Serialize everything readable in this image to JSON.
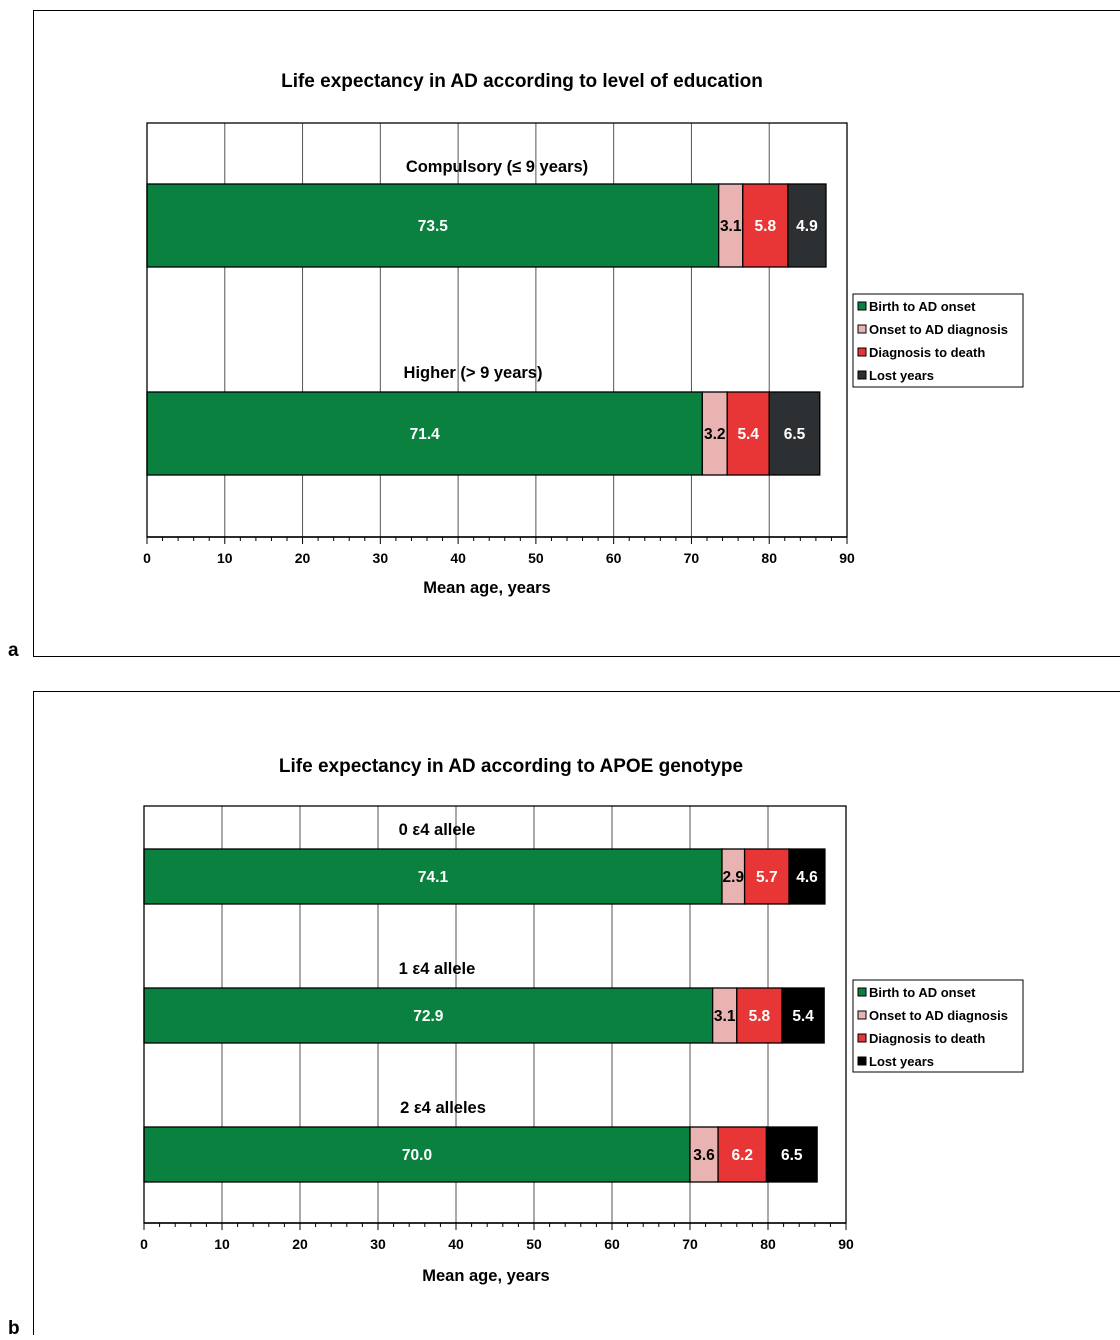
{
  "panels": [
    {
      "letter": "a"
    },
    {
      "letter": "b"
    }
  ],
  "legend": {
    "entries": [
      "Birth to AD onset",
      "Onset to AD diagnosis",
      "Diagnosis to death",
      "Lost years"
    ]
  },
  "colors": {
    "birth_to_onset": "#0b8140",
    "onset_to_diagnosis": "#e8b3b0",
    "diagnosis_to_death": "#e83535",
    "lost_years_a": "#2d3033",
    "lost_years_b": "#000000"
  },
  "chart_data": [
    {
      "type": "bar",
      "orientation": "horizontal",
      "stacked": true,
      "title": "Life expectancy in AD according to level of education",
      "xlabel": "Mean age, years",
      "xlim": [
        0,
        90
      ],
      "xticks": [
        0,
        10,
        20,
        30,
        40,
        50,
        60,
        70,
        80,
        90
      ],
      "grid": true,
      "legend_position": "right",
      "categories": [
        "Compulsory (≤ 9 years)",
        "Higher (> 9 years)"
      ],
      "series": [
        {
          "name": "Birth to AD onset",
          "values": [
            73.5,
            71.4
          ],
          "labels": [
            "73.5",
            "71.4"
          ]
        },
        {
          "name": "Onset to AD diagnosis",
          "values": [
            3.1,
            3.2
          ],
          "labels": [
            "3.1",
            "3.2"
          ]
        },
        {
          "name": "Diagnosis to death",
          "values": [
            5.8,
            5.4
          ],
          "labels": [
            "5.8",
            "5.4"
          ]
        },
        {
          "name": "Lost years",
          "values": [
            4.9,
            6.5
          ],
          "labels": [
            "4.9",
            "6.5"
          ]
        }
      ]
    },
    {
      "type": "bar",
      "orientation": "horizontal",
      "stacked": true,
      "title": "Life expectancy in AD according to APOE genotype",
      "xlabel": "Mean age, years",
      "xlim": [
        0,
        90
      ],
      "xticks": [
        0,
        10,
        20,
        30,
        40,
        50,
        60,
        70,
        80,
        90
      ],
      "grid": true,
      "legend_position": "right",
      "categories": [
        "0 ε4 allele",
        "1 ε4 allele",
        "2 ε4 alleles"
      ],
      "series": [
        {
          "name": "Birth to AD onset",
          "values": [
            74.1,
            72.9,
            70.0
          ],
          "labels": [
            "74.1",
            "72.9",
            "70.0"
          ]
        },
        {
          "name": "Onset to AD diagnosis",
          "values": [
            2.9,
            3.1,
            3.6
          ],
          "labels": [
            "2.9",
            "3.1",
            "3.6"
          ]
        },
        {
          "name": "Diagnosis to death",
          "values": [
            5.7,
            5.8,
            6.2
          ],
          "labels": [
            "5.7",
            "5.8",
            "6.2"
          ]
        },
        {
          "name": "Lost years",
          "values": [
            4.6,
            5.4,
            6.5
          ],
          "labels": [
            "4.6",
            "5.4",
            "6.5"
          ]
        }
      ]
    }
  ]
}
